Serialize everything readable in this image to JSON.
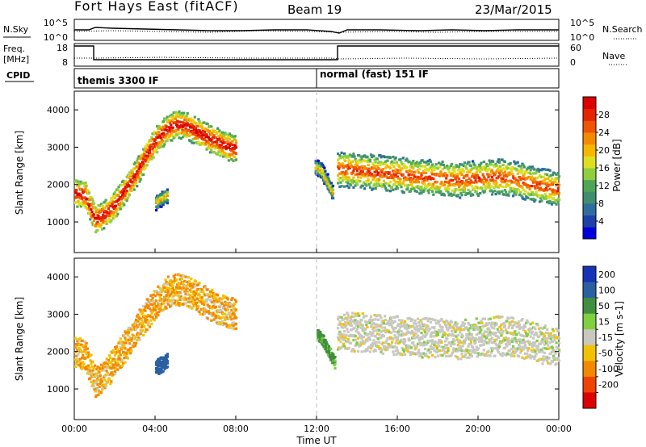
{
  "header": {
    "title": "Fort Hays East (fitACF)",
    "beam": "Beam 19",
    "date": "23/Mar/2015"
  },
  "noise_panel": {
    "left_label": "N.Sky",
    "right_label": "N.Search",
    "left_ticks": [
      "10^5",
      "10^0"
    ],
    "right_ticks": [
      "10^5",
      "10^0"
    ]
  },
  "freq_panel": {
    "left_label_1": "Freq.",
    "left_label_2": "[MHz]",
    "right_label": "Nave",
    "left_ticks": [
      "18",
      "8"
    ],
    "right_ticks": [
      "60",
      "0"
    ]
  },
  "cpid_panel": {
    "label": "CPID",
    "segments": [
      {
        "label": "themis 3300 IF",
        "start_hour": 0,
        "end_hour": 12
      },
      {
        "label": "normal (fast) 151 IF",
        "start_hour": 12,
        "end_hour": 24
      }
    ]
  },
  "power_colorbar": {
    "label": "Power [dB]",
    "ticks": [
      "28",
      "24",
      "20",
      "16",
      "12",
      "8",
      "4"
    ],
    "tick_values": [
      28,
      24,
      20,
      16,
      12,
      8,
      4
    ],
    "range": [
      0,
      32
    ],
    "colors": [
      "#0000dd",
      "#1e3fa8",
      "#2e6e9e",
      "#3f8f6f",
      "#4fa656",
      "#8fce3f",
      "#dde020",
      "#f5b800",
      "#f48a00",
      "#ef5500",
      "#e52400",
      "#dd0000"
    ]
  },
  "velocity_colorbar": {
    "label": "Velocity [m s-1]",
    "ticks": [
      "200",
      "100",
      "50",
      "15",
      "-15",
      "-50",
      "-100",
      "-200"
    ],
    "colors": [
      "#1633b8",
      "#2a5fa0",
      "#3f8f3f",
      "#7fcf3f",
      "#c8c8c0",
      "#f2c200",
      "#f48800",
      "#ee4400",
      "#dd0000"
    ]
  },
  "chart_data": [
    {
      "type": "heatmap",
      "panel": "power",
      "ylabel": "Slant Range [km]",
      "yticks": [
        1000,
        2000,
        3000,
        4000
      ],
      "ylim": [
        180,
        4500
      ],
      "xlim": [
        0,
        24
      ],
      "series": [
        {
          "x": [
            0.0,
            0.5,
            1.0,
            1.5,
            2.0,
            2.5,
            3.0,
            3.5,
            4.0,
            4.5,
            5.0,
            5.5,
            6.0,
            6.5,
            7.0,
            7.5,
            8.0
          ],
          "y": [
            1800,
            1750,
            1100,
            1250,
            1500,
            1900,
            2300,
            2800,
            3200,
            3500,
            3650,
            3600,
            3450,
            3300,
            3200,
            3050,
            3000
          ],
          "spread": 350,
          "power": 20
        },
        {
          "x": [
            11.9,
            12.2,
            12.5,
            12.8
          ],
          "y": [
            2500,
            2400,
            2100,
            1750
          ],
          "spread": 200,
          "power": 10
        },
        {
          "x": [
            13.0,
            14.0,
            15.0,
            16.0,
            17.0,
            18.0,
            19.0,
            20.0,
            21.0,
            22.0,
            23.0,
            24.0
          ],
          "y": [
            2450,
            2400,
            2350,
            2300,
            2250,
            2200,
            2150,
            2200,
            2250,
            2150,
            2000,
            1900
          ],
          "spread": 450,
          "power": 16
        },
        {
          "x": [
            4.0,
            4.3,
            4.6
          ],
          "y": [
            1550,
            1650,
            1750
          ],
          "spread": 200,
          "power": 10
        }
      ]
    },
    {
      "type": "heatmap",
      "panel": "velocity",
      "ylabel": "Slant Range [km]",
      "yticks": [
        1000,
        2000,
        3000,
        4000
      ],
      "ylim": [
        180,
        4500
      ],
      "xlim": [
        0,
        24
      ],
      "series": [
        {
          "x": [
            0.0,
            0.5,
            1.0,
            1.5,
            2.0,
            2.5,
            3.0,
            3.5,
            4.0,
            4.5,
            5.0,
            5.5,
            6.0,
            6.5,
            7.0,
            7.5,
            8.0
          ],
          "y": [
            2000,
            1950,
            1200,
            1400,
            1800,
            2200,
            2600,
            3000,
            3300,
            3600,
            3700,
            3650,
            3500,
            3350,
            3200,
            3100,
            3000
          ],
          "spread": 400,
          "velocity": -30
        },
        {
          "x": [
            12.0,
            12.3,
            12.6,
            12.9
          ],
          "y": [
            2500,
            2300,
            2000,
            1700
          ],
          "spread": 150,
          "velocity": 40
        },
        {
          "x": [
            13.0,
            14.0,
            15.0,
            16.0,
            17.0,
            18.0,
            19.0,
            20.0,
            21.0,
            22.0,
            23.0,
            24.0
          ],
          "y": [
            2600,
            2550,
            2500,
            2450,
            2400,
            2400,
            2350,
            2400,
            2450,
            2400,
            2250,
            2100
          ],
          "spread": 500,
          "velocity": 0
        },
        {
          "x": [
            4.0,
            4.3,
            4.6
          ],
          "y": [
            1600,
            1700,
            1800
          ],
          "spread": 200,
          "velocity": 120
        }
      ]
    }
  ],
  "x_axis": {
    "label": "Time UT",
    "tick_hours": [
      0,
      4,
      8,
      12,
      16,
      20,
      24
    ],
    "ticks": [
      "00:00",
      "04:00",
      "08:00",
      "12:00",
      "16:00",
      "20:00",
      "00:00"
    ]
  }
}
